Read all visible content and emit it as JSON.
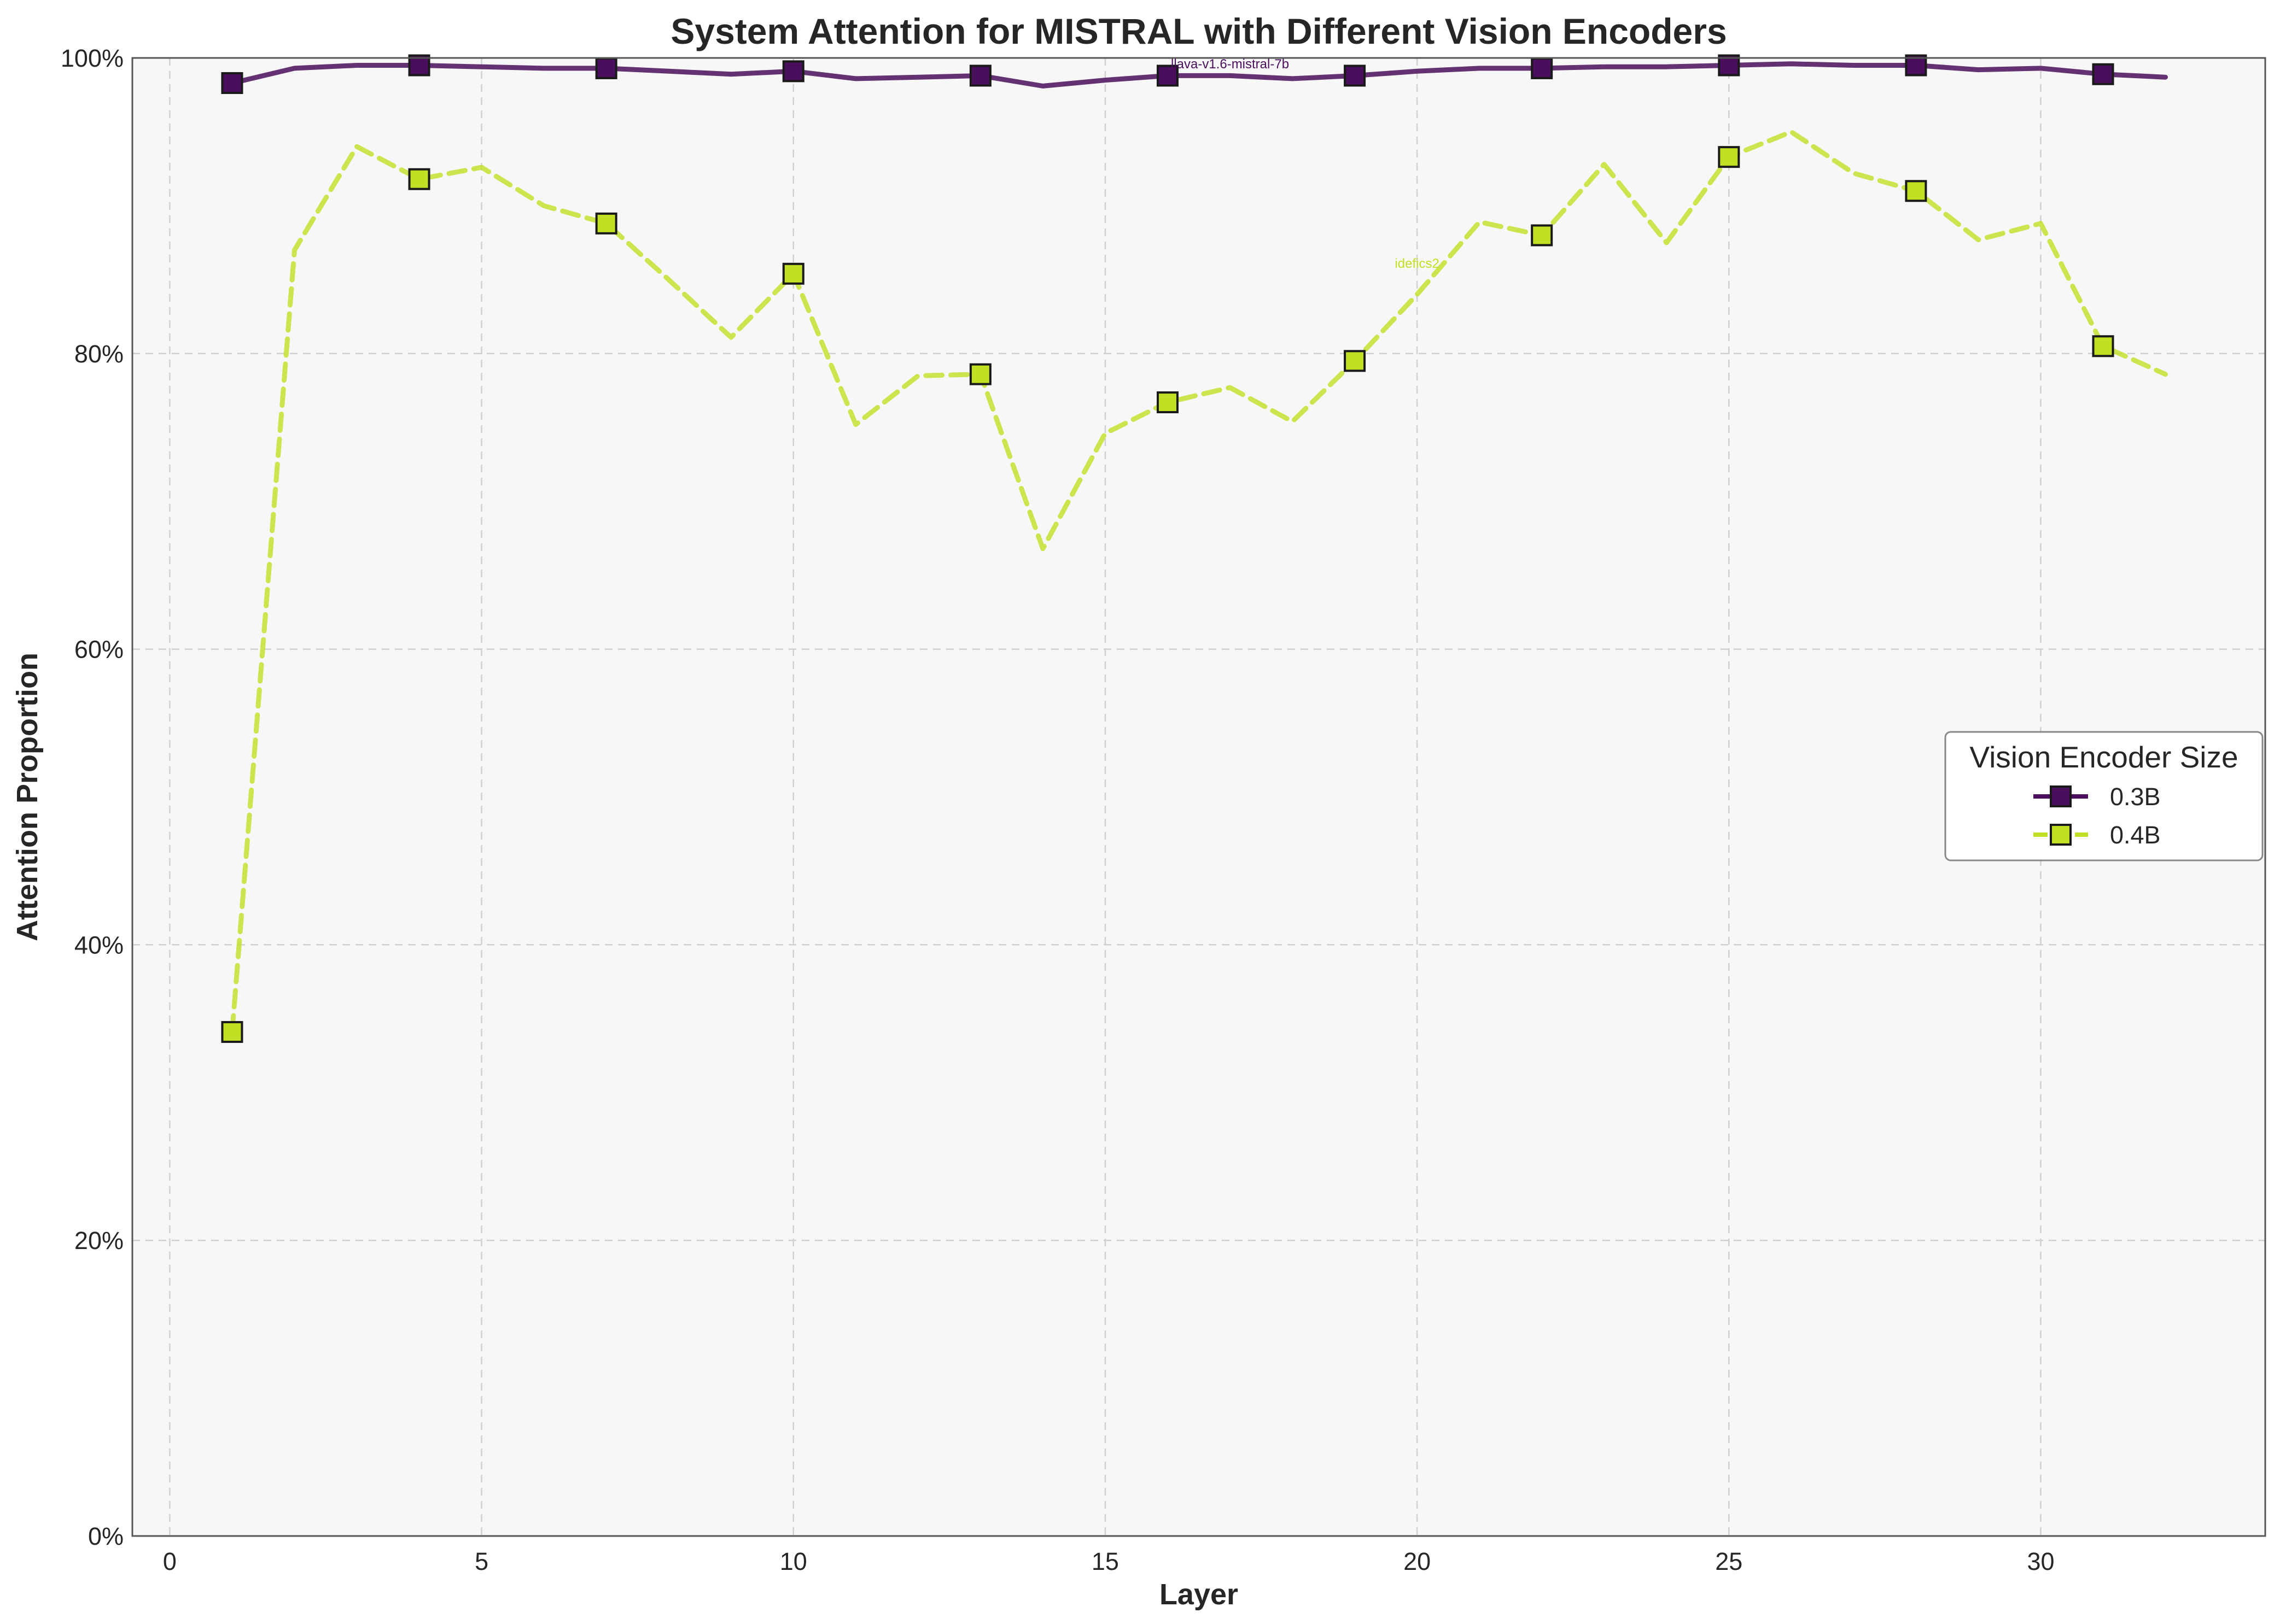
{
  "chart_data": {
    "type": "line",
    "title": "System Attention for MISTRAL with Different Vision Encoders",
    "xlabel": "Layer",
    "ylabel": "Attention Proportion",
    "xlim": [
      -0.6,
      33.6
    ],
    "ylim": [
      0,
      1
    ],
    "x_ticks": [
      0,
      5,
      10,
      15,
      20,
      25,
      30
    ],
    "y_ticks": [
      0,
      0.2,
      0.4,
      0.6,
      0.8,
      1.0
    ],
    "y_tick_labels": [
      "0%",
      "20%",
      "40%",
      "60%",
      "80%",
      "100%"
    ],
    "grid": true,
    "legend": {
      "title": "Vision Encoder Size",
      "position": "center-right"
    },
    "x": [
      1,
      2,
      3,
      4,
      5,
      6,
      7,
      8,
      9,
      10,
      11,
      12,
      13,
      14,
      15,
      16,
      17,
      18,
      19,
      20,
      21,
      22,
      23,
      24,
      25,
      26,
      27,
      28,
      29,
      30,
      31,
      32
    ],
    "marker_every": 3,
    "series": [
      {
        "name": "0.3B",
        "color": "#4a0f5c",
        "line_style": "solid",
        "marker": "square",
        "annotation": "llava-v1.6-mistral-7b",
        "annotation_x": 17,
        "annotation_y": 0.99,
        "values": [
          0.983,
          0.993,
          0.995,
          0.995,
          0.994,
          0.993,
          0.993,
          0.991,
          0.989,
          0.991,
          0.986,
          0.987,
          0.988,
          0.981,
          0.985,
          0.988,
          0.988,
          0.986,
          0.988,
          0.991,
          0.993,
          0.993,
          0.994,
          0.994,
          0.995,
          0.996,
          0.995,
          0.995,
          0.992,
          0.993,
          0.989,
          0.987
        ]
      },
      {
        "name": "0.4B",
        "color": "#c2df23",
        "line_style": "dashed",
        "marker": "square",
        "annotation": "idefics2",
        "annotation_x": 20,
        "annotation_y": 0.855,
        "values": [
          0.341,
          0.87,
          0.94,
          0.918,
          0.926,
          0.9,
          0.888,
          0.85,
          0.811,
          0.854,
          0.752,
          0.785,
          0.786,
          0.668,
          0.746,
          0.767,
          0.777,
          0.754,
          0.795,
          0.84,
          0.889,
          0.88,
          0.928,
          0.875,
          0.933,
          0.95,
          0.922,
          0.91,
          0.877,
          0.888,
          0.805,
          0.786
        ]
      }
    ]
  }
}
